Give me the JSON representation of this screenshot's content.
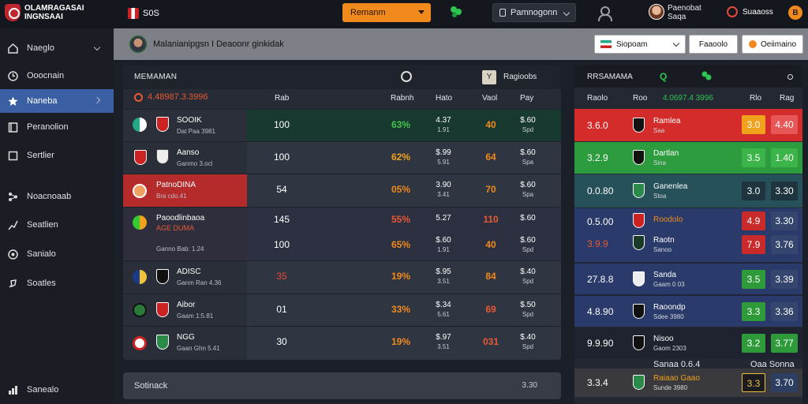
{
  "brand": {
    "line1": "OLAMRAGASAI",
    "line2": "INGNSAAI"
  },
  "topbar": {
    "league": "S0S",
    "main_button": "Remanm",
    "market_select": "Pamnogonn",
    "account_name": "Paenobat",
    "account_sub": "Saqa",
    "balance_label": "Suaaoss",
    "coin_label": "B"
  },
  "sidebar": {
    "items": [
      {
        "label": "Naeglo",
        "icon": "home-icon"
      },
      {
        "label": "Ooocnain",
        "icon": "clock-icon"
      },
      {
        "label": "Naneba",
        "icon": "star-icon"
      },
      {
        "label": "Peranolion",
        "icon": "book-icon"
      },
      {
        "label": "Sertlier",
        "icon": "square-icon"
      },
      {
        "label": "Noacnoaab",
        "icon": "network-icon"
      },
      {
        "label": "Seatlien",
        "icon": "runner-icon"
      },
      {
        "label": "Sanialo",
        "icon": "coin-icon"
      },
      {
        "label": "Soatles",
        "icon": "rocket-icon"
      },
      {
        "label": "Sanealo",
        "icon": "chart-icon"
      }
    ]
  },
  "subbar": {
    "title": "Malanianipgsn I Deaoonr ginkidak",
    "region_select": "Siopoam",
    "btn1": "Faaoolo",
    "btn2": "Oeiimaino"
  },
  "main_panel": {
    "title": "MEMAMAN",
    "y_label": "Y",
    "regions_label": "Ragioobs",
    "score_head": "4.48987.3.3996",
    "columns": [
      "Rab",
      "Rabnh",
      "Hato",
      "Vaol",
      "Pay"
    ],
    "rows": [
      {
        "name": "SOOIK",
        "sub": "Dat Paa 3981",
        "val": "100",
        "pct": "63%",
        "pct_color": "#41c64a",
        "s1": "4.37",
        "s1b": "1.91",
        "v": "40",
        "v_color": "#f08a1c",
        "p1": "$.60",
        "p2": "Spd"
      },
      {
        "name": "Aanso",
        "sub": "Ganmo 3.ocl",
        "val": "100",
        "pct": "62%",
        "pct_color": "#f0a21c",
        "s1": "$.99",
        "s1b": "5.91",
        "v": "64",
        "v_color": "#f08a1c",
        "p1": "$.60",
        "p2": "Spa"
      },
      {
        "name": "PatnoDINA",
        "sub": "Bra cdo.41",
        "val": "54",
        "pct": "05%",
        "pct_color": "#f08a1c",
        "s1": "3.90",
        "s1b": "3.41",
        "v": "70",
        "v_color": "#f08a1c",
        "p1": "$.60",
        "p2": "Spa"
      },
      {
        "name": "Paoodlinbaoa",
        "sub": "AGE DUMA",
        "val": "145",
        "pct": "55%",
        "pct_color": "#e85a35",
        "s1": "5.27",
        "s1b": "",
        "v": "110",
        "v_color": "#e85a35",
        "p1": "$.60",
        "p2": ""
      },
      {
        "name": "",
        "sub": "Ganno Bab: 1.24",
        "val": "100",
        "pct": "65%",
        "pct_color": "#f08a1c",
        "s1": "$.60",
        "s1b": "1.91",
        "v": "40",
        "v_color": "#f08a1c",
        "p1": "$.60",
        "p2": "Spd"
      },
      {
        "name": "ADISC",
        "sub": "Ganm Ran 4.36",
        "val": "35",
        "pct": "19%",
        "pct_color": "#f08a1c",
        "s1": "$.95",
        "s1b": "3.51",
        "v": "84",
        "v_color": "#f08a1c",
        "p1": "$.40",
        "p2": "Spd"
      },
      {
        "name": "Aibor",
        "sub": "Gaam 1:5.81",
        "val": "01",
        "pct": "33%",
        "pct_color": "#f08a1c",
        "s1": "$.34",
        "s1b": "5.61",
        "v": "69",
        "v_color": "#e85a35",
        "p1": "$.50",
        "p2": "Spd"
      },
      {
        "name": "NGG",
        "sub": "Gaan Ghn 5.41",
        "val": "30",
        "pct": "19%",
        "pct_color": "#f08a1c",
        "s1": "$.97",
        "s1b": "3.51",
        "v": "031",
        "v_color": "#e85a35",
        "p1": "$.40",
        "p2": "Spd"
      }
    ]
  },
  "search": {
    "label": "Sotinack",
    "value": "3.30"
  },
  "right_panel": {
    "title": "RRSAMAMA",
    "q_label": "Q",
    "columns": [
      "Raolo",
      "Roo",
      "4.0697.4 3996",
      "Rlo",
      "Rag"
    ],
    "rows": [
      {
        "num": "3.6.0",
        "name": "Ramlea",
        "sub": "Saa",
        "o1": "3.0",
        "o2": "4.40",
        "bg": "#d42b2b",
        "o1bg": "#f0a21c",
        "o2bg": "#e85757"
      },
      {
        "num": "3.2.9",
        "name": "Dartlan",
        "sub": "Sina",
        "o1": "3.5",
        "o2": "1.40",
        "bg": "#2c9c3e",
        "o1bg": "#3bb54a",
        "o2bg": "#3bb54a"
      },
      {
        "num": "0.0.80",
        "name": "Ganenlea",
        "sub": "Stoa",
        "o1": "3.0",
        "o2": "3.30",
        "bg": "#26505a",
        "o1bg": "#1e3540",
        "o2bg": "#1e3540"
      },
      {
        "num": "0.5.00",
        "name": "Roodolo",
        "sub": "",
        "o1": "4.9",
        "o2": "3.30",
        "bg": "#2a3a6a",
        "o1bg": "#c92b2b",
        "o2bg": "#34456e"
      },
      {
        "num": "3.9.9",
        "name": "Raotn",
        "sub": "Sanoo",
        "o1": "7.9",
        "o2": "3.76",
        "bg": "#2a3a6a",
        "o1bg": "#c92b2b",
        "o2bg": "#34456e"
      },
      {
        "num": "27.8.8",
        "name": "Sanda",
        "sub": "Gaam 0 03",
        "o1": "3.5",
        "o2": "3.39",
        "bg": "#2a3a6a",
        "o1bg": "#2e9a3a",
        "o2bg": "#34456e"
      },
      {
        "num": "4.8.90",
        "name": "Raoondp",
        "sub": "Sdee 3980",
        "o1": "3.3",
        "o2": "3.36",
        "bg": "#2a3a6a",
        "o1bg": "#2e9a3a",
        "o2bg": "#34456e"
      },
      {
        "num": "9.9.90",
        "name": "Nisoo",
        "sub": "Gaom 2303",
        "o1": "3.2",
        "o2": "3.77",
        "bg": "#1f2330",
        "o1bg": "#2e9a3a",
        "o2bg": "#2e9a3a"
      },
      {
        "num": "3.3.4",
        "name": "Raiaao Gaao",
        "sub": "Sunde 3980",
        "o1": "3.3",
        "o2": "3.70",
        "bg": "#3a3a3e",
        "o1bg": "#1a1c20",
        "o2bg": "#2c3e62"
      }
    ],
    "footer_sub1": "Sanaa 0.6.4",
    "footer_sub2": "Oaa Sonna"
  }
}
